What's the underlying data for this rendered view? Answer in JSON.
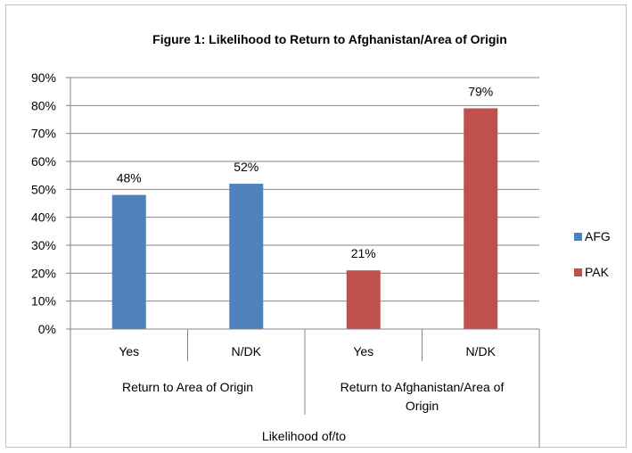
{
  "chart_data": {
    "type": "bar",
    "title": "Figure 1: Likelihood to Return to Afghanistan/Area of Origin",
    "xlabel": "Likelihood of/to",
    "ylabel": "",
    "ylim": [
      0,
      90
    ],
    "yticks": [
      "0%",
      "10%",
      "20%",
      "30%",
      "40%",
      "50%",
      "60%",
      "70%",
      "80%",
      "90%"
    ],
    "categories": [
      "Yes",
      "N/DK",
      "Yes",
      "N/DK"
    ],
    "groups": [
      "Return to Area of Origin",
      "Return to Afghanistan/Area of Origin"
    ],
    "series": [
      {
        "name": "AFG",
        "color": "#4f81bd",
        "values": [
          48,
          52,
          null,
          null
        ],
        "labels": [
          "48%",
          "52%",
          "",
          ""
        ]
      },
      {
        "name": "PAK",
        "color": "#c0504d",
        "values": [
          null,
          null,
          21,
          79
        ],
        "labels": [
          "",
          "",
          "21%",
          "79%"
        ]
      }
    ],
    "grid": true,
    "legend": "right"
  }
}
